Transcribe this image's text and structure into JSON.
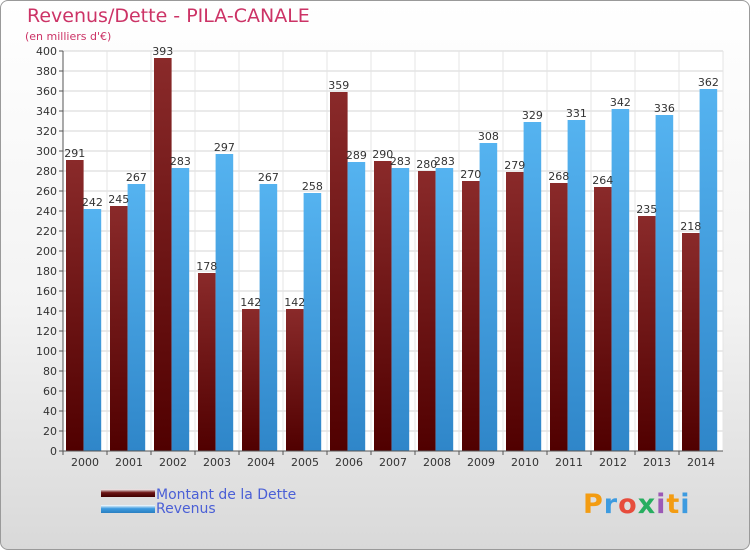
{
  "title": "Revenus/Dette - PILA-CANALE",
  "unit_label": "(en milliers d'€)",
  "logo_text": "Proxiti",
  "colors": {
    "dette": "#6b1414",
    "revenus": "#3d9be0",
    "title": "#cc3366",
    "legend_text": "#4a5fd6"
  },
  "legend": [
    {
      "label": "Montant de la Dette",
      "series": "dette"
    },
    {
      "label": "Revenus",
      "series": "revenus"
    }
  ],
  "chart_data": {
    "type": "bar",
    "title": "Revenus/Dette - PILA-CANALE",
    "ylabel": "(en milliers d'€)",
    "categories": [
      "2000",
      "2001",
      "2002",
      "2003",
      "2004",
      "2005",
      "2006",
      "2007",
      "2008",
      "2009",
      "2010",
      "2011",
      "2012",
      "2013",
      "2014"
    ],
    "series": [
      {
        "name": "Montant de la Dette",
        "values": [
          291,
          245,
          393,
          178,
          142,
          142,
          359,
          290,
          280,
          270,
          279,
          268,
          264,
          235,
          218
        ]
      },
      {
        "name": "Revenus",
        "values": [
          242,
          267,
          283,
          297,
          267,
          258,
          289,
          283,
          283,
          308,
          329,
          331,
          342,
          336,
          362
        ]
      }
    ],
    "ylim": [
      0,
      400
    ],
    "yticks": [
      0,
      20,
      40,
      60,
      80,
      100,
      120,
      140,
      160,
      180,
      200,
      220,
      240,
      260,
      280,
      300,
      320,
      340,
      360,
      380,
      400
    ],
    "grid": true,
    "legend_position": "bottom-left"
  }
}
